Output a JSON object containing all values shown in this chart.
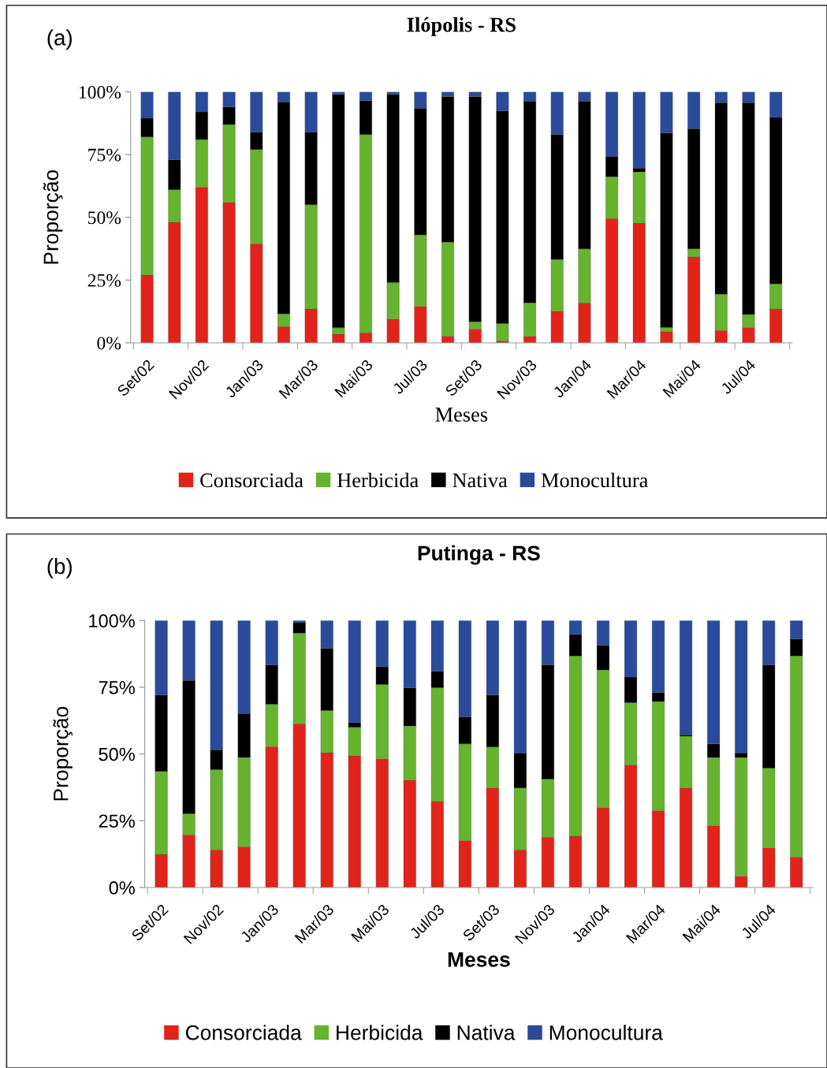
{
  "chart_data": [
    {
      "type": "bar",
      "stacked": true,
      "title": "Ilópolis - RS",
      "xlabel": "Meses",
      "ylabel": "Proporção",
      "annotations": [
        "(a)"
      ],
      "categories": [
        "Set/02",
        null,
        "Nov/02",
        null,
        "Jan/03",
        null,
        "Mar/03",
        null,
        "Mai/03",
        null,
        "Jul/03",
        null,
        "Set/03",
        null,
        "Nov/03",
        null,
        "Jan/04",
        null,
        "Mar/04",
        null,
        "Mai/04",
        null,
        "Jul/04",
        null
      ],
      "ylim": [
        0,
        100
      ],
      "yticks": [
        {
          "value": 0,
          "label": "0%"
        },
        {
          "value": 25,
          "label": "25%"
        },
        {
          "value": 50,
          "label": "50%"
        },
        {
          "value": 75,
          "label": "75%"
        },
        {
          "value": 100,
          "label": "100%"
        }
      ],
      "legend": "bottom",
      "grid": false,
      "series": [
        {
          "name": "Consorciada",
          "color": "#e2231a",
          "values": [
            27,
            48,
            62,
            56,
            39.5,
            6.5,
            13.5,
            3.5,
            4,
            9.5,
            14.5,
            2.6,
            5.5,
            0.8,
            2.6,
            12.6,
            15.9,
            49.5,
            47.7,
            4.4,
            34.3,
            4.9,
            6.1,
            13.6
          ]
        },
        {
          "name": "Herbicida",
          "color": "#66b32e",
          "values": [
            55,
            13,
            19,
            31,
            37.5,
            5,
            41.5,
            2.5,
            79,
            14.5,
            28.5,
            37.5,
            2.9,
            6.9,
            13.3,
            20.6,
            21.5,
            16.7,
            20.4,
            1.7,
            3.1,
            14.5,
            5.2,
            9.9
          ]
        },
        {
          "name": "Nativa",
          "color": "#000000",
          "values": [
            7.5,
            12,
            11,
            7,
            7,
            84.5,
            29,
            93,
            13.5,
            75,
            50.5,
            58,
            89.7,
            84.7,
            80.4,
            49.8,
            58.9,
            8.1,
            1.5,
            77.5,
            47.9,
            76.3,
            84.4,
            66.3
          ]
        },
        {
          "name": "Monocultura",
          "color": "#2a4b9b",
          "values": [
            10.5,
            27,
            8,
            6,
            16,
            4,
            16,
            1,
            3.5,
            1,
            6.5,
            1.9,
            1.9,
            7.6,
            3.7,
            17,
            3.7,
            25.7,
            30.4,
            16.4,
            14.7,
            4.3,
            4.3,
            10.2
          ]
        }
      ]
    },
    {
      "type": "bar",
      "stacked": true,
      "title": "Putinga - RS",
      "xlabel": "Meses",
      "ylabel": "Proporção",
      "annotations": [
        "(b)"
      ],
      "categories": [
        "Set/02",
        null,
        "Nov/02",
        null,
        "Jan/03",
        null,
        "Mar/03",
        null,
        "Mai/03",
        null,
        "Jul/03",
        null,
        "Set/03",
        null,
        "Nov/03",
        null,
        "Jan/04",
        null,
        "Mar/04",
        null,
        "Mai/04",
        null,
        "Jul/04",
        null
      ],
      "ylim": [
        0,
        100
      ],
      "yticks": [
        {
          "value": 0,
          "label": "0%"
        },
        {
          "value": 25,
          "label": "25%"
        },
        {
          "value": 50,
          "label": "50%"
        },
        {
          "value": 75,
          "label": "75%"
        },
        {
          "value": 100,
          "label": "100%"
        }
      ],
      "legend": "bottom",
      "grid": false,
      "series": [
        {
          "name": "Consorciada",
          "color": "#e2231a",
          "values": [
            12.4,
            19.7,
            14.1,
            15.3,
            52.8,
            61.3,
            50.5,
            49.4,
            48.2,
            40.2,
            32.2,
            17.6,
            37.3,
            14.1,
            18.8,
            19.2,
            29.9,
            45.9,
            28.8,
            37.3,
            23.2,
            4.2,
            14.8,
            11.4
          ]
        },
        {
          "name": "Herbicida",
          "color": "#66b32e",
          "values": [
            31.1,
            7.9,
            30,
            33.4,
            15.8,
            34,
            15.8,
            10.6,
            27.8,
            20.3,
            42.6,
            36.2,
            15.3,
            23.2,
            21.8,
            67.5,
            51.6,
            23.3,
            40.9,
            19.4,
            25.5,
            44.5,
            29.9,
            75.3
          ]
        },
        {
          "name": "Nativa",
          "color": "#000000",
          "values": [
            28.6,
            50,
            7.5,
            16.5,
            14.8,
            3.9,
            23.3,
            1.8,
            6.8,
            14.3,
            6.2,
            10.1,
            19.5,
            13.1,
            42.8,
            8.1,
            9.3,
            9.6,
            3.4,
            0.5,
            5.1,
            1.7,
            38.7,
            6.4
          ]
        },
        {
          "name": "Monocultura",
          "color": "#2a4b9b",
          "values": [
            27.9,
            22.4,
            48.4,
            34.8,
            16.6,
            0.8,
            10.4,
            38.2,
            17.2,
            25.2,
            19,
            36.1,
            27.9,
            49.6,
            16.6,
            5.2,
            9.2,
            21.2,
            26.9,
            42.8,
            46.2,
            49.6,
            16.6,
            6.9
          ]
        }
      ]
    }
  ]
}
